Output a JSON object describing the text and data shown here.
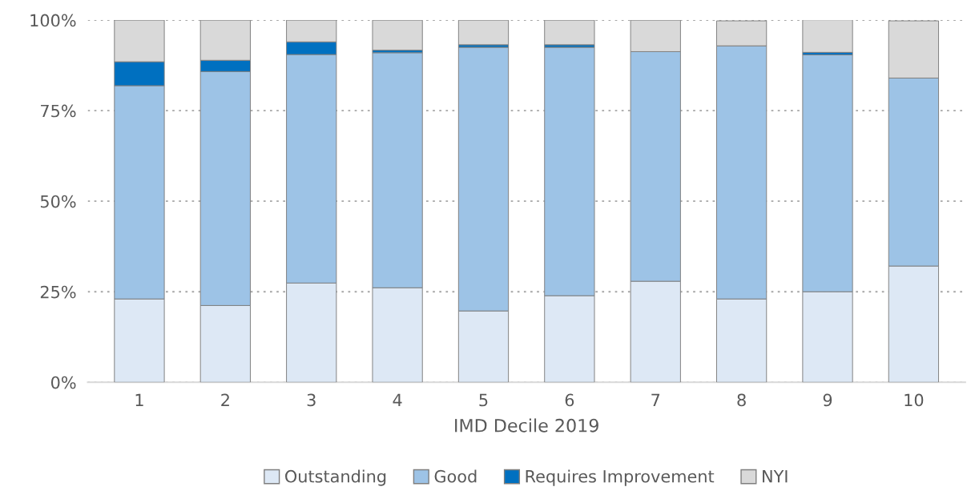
{
  "chart_data": {
    "type": "bar",
    "stacked": true,
    "xlabel": "IMD Decile 2019",
    "categories": [
      "1",
      "2",
      "3",
      "4",
      "5",
      "6",
      "7",
      "8",
      "9",
      "10"
    ],
    "series": [
      {
        "name": "Outstanding",
        "color": "#dde8f5",
        "values": [
          23.0,
          21.2,
          27.4,
          26.1,
          19.7,
          23.9,
          27.9,
          23.0,
          25.0,
          32.1
        ]
      },
      {
        "name": "Good",
        "color": "#9dc3e6",
        "values": [
          58.9,
          64.6,
          63.1,
          64.9,
          72.8,
          68.6,
          63.4,
          69.9,
          65.4,
          51.9
        ]
      },
      {
        "name": "Requires Improvement",
        "color": "#0070c0",
        "values": [
          6.6,
          3.1,
          3.5,
          0.7,
          0.7,
          0.7,
          0,
          null,
          0.7,
          null
        ]
      },
      {
        "name": "NYI",
        "color": "#d9d9d9",
        "values": [
          11.5,
          11.1,
          6.0,
          8.3,
          6.8,
          6.8,
          8.7,
          6.9,
          9.0,
          15.8
        ]
      }
    ],
    "ylim": [
      0,
      100
    ],
    "yticks": [
      {
        "value": 0,
        "label": "0%"
      },
      {
        "value": 25,
        "label": "25%"
      },
      {
        "value": 50,
        "label": "50%"
      },
      {
        "value": 75,
        "label": "75%"
      },
      {
        "value": 100,
        "label": "100%"
      }
    ],
    "grid": "y",
    "legend": "bottom"
  }
}
